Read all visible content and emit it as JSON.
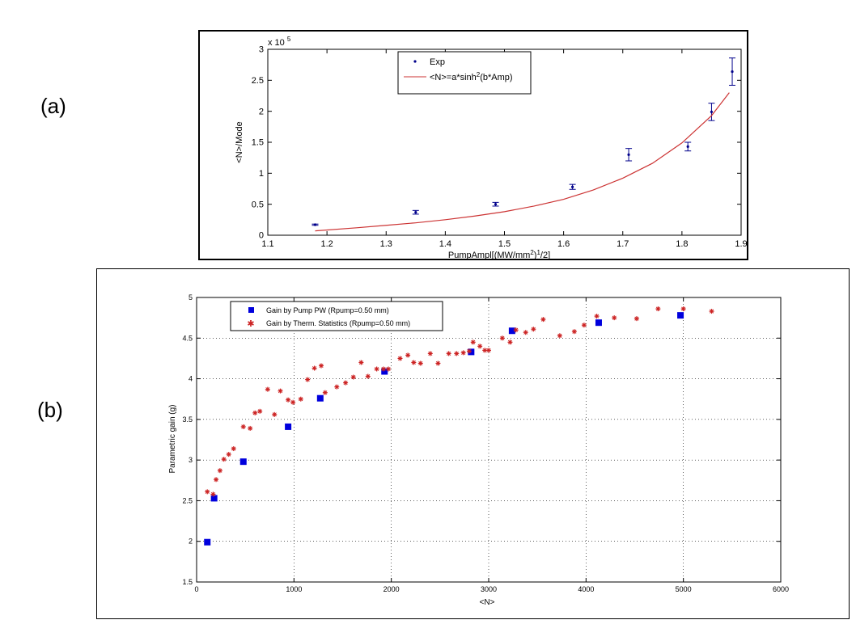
{
  "panel_labels": {
    "a": "(a)",
    "b": "(b)"
  },
  "chart_data": [
    {
      "type": "scatter",
      "panel": "(a)",
      "xlabel": "PumpAmpl[(MW/mm2)1/2]",
      "xlabel_parts": {
        "pre": "PumpAmpl[(MW/mm",
        "sup1": "2",
        "mid": ")",
        "sup2": "1",
        "post": "/2]"
      },
      "ylabel": "<N>/Mode",
      "y_multiplier": {
        "base": "x 10",
        "exp": "5"
      },
      "xlim": [
        1.1,
        1.9
      ],
      "ylim": [
        0,
        3
      ],
      "xticks": [
        1.1,
        1.2,
        1.3,
        1.4,
        1.5,
        1.6,
        1.7,
        1.8,
        1.9
      ],
      "xtick_labels": [
        "1.1",
        "1.2",
        "1.3",
        "1.4",
        "1.5",
        "1.6",
        "1.7",
        "1.8",
        "1.9"
      ],
      "yticks": [
        0,
        0.5,
        1,
        1.5,
        2,
        2.5,
        3
      ],
      "ytick_labels": [
        "0",
        "0.5",
        "1",
        "1.5",
        "2",
        "2.5",
        "3"
      ],
      "grid": false,
      "legend_position": "top-center",
      "series": [
        {
          "name": "Exp",
          "style": "points-with-errorbars",
          "color": "#00008b",
          "x": [
            1.18,
            1.35,
            1.485,
            1.615,
            1.71,
            1.81,
            1.85,
            1.885
          ],
          "y": [
            0.17,
            0.37,
            0.5,
            0.78,
            1.3,
            1.43,
            1.99,
            2.64
          ],
          "err": [
            0.01,
            0.03,
            0.03,
            0.04,
            0.1,
            0.07,
            0.14,
            0.22
          ]
        },
        {
          "name": "<N>=a*sinh2(b*Amp)",
          "name_parts": {
            "pre": "<N>=a*sinh",
            "sup": "2",
            "post": "(b*Amp)"
          },
          "style": "line",
          "color": "#cc3333",
          "x": [
            1.18,
            1.25,
            1.3,
            1.35,
            1.4,
            1.45,
            1.5,
            1.55,
            1.6,
            1.65,
            1.7,
            1.75,
            1.8,
            1.85,
            1.88
          ],
          "y": [
            0.07,
            0.12,
            0.16,
            0.2,
            0.25,
            0.31,
            0.38,
            0.47,
            0.58,
            0.73,
            0.92,
            1.16,
            1.49,
            1.93,
            2.3
          ]
        }
      ]
    },
    {
      "type": "scatter",
      "panel": "(b)",
      "xlabel": "<N>",
      "ylabel": "Parametric gain (g)",
      "xlim": [
        0,
        6000
      ],
      "ylim": [
        1.5,
        5
      ],
      "xticks": [
        0,
        1000,
        2000,
        3000,
        4000,
        5000,
        6000
      ],
      "xtick_labels": [
        "0",
        "1000",
        "2000",
        "3000",
        "4000",
        "5000",
        "6000"
      ],
      "yticks": [
        1.5,
        2,
        2.5,
        3,
        3.5,
        4,
        4.5,
        5
      ],
      "ytick_labels": [
        "1.5",
        "2",
        "2.5",
        "3",
        "3.5",
        "4",
        "4.5",
        "5"
      ],
      "grid": true,
      "legend_position": "top-left",
      "series": [
        {
          "name": "Gain by Pump PW (Rpump=0.50 mm)",
          "marker": "square",
          "color": "#0000dd",
          "x": [
            110,
            180,
            480,
            940,
            1270,
            1930,
            2820,
            3240,
            4130,
            4970
          ],
          "y": [
            1.99,
            2.53,
            2.98,
            3.41,
            3.76,
            4.09,
            4.33,
            4.59,
            4.69,
            4.78
          ]
        },
        {
          "name": "Gain by Therm. Statistics (Rpump=0.50 mm)",
          "marker": "star",
          "color": "#cc2222",
          "x": [
            110,
            170,
            200,
            240,
            280,
            330,
            380,
            480,
            550,
            600,
            650,
            730,
            800,
            860,
            940,
            990,
            1070,
            1140,
            1210,
            1280,
            1320,
            1440,
            1530,
            1610,
            1690,
            1760,
            1850,
            1920,
            1970,
            2090,
            2170,
            2230,
            2300,
            2400,
            2480,
            2590,
            2670,
            2740,
            2800,
            2840,
            2910,
            2960,
            3000,
            3140,
            3220,
            3280,
            3380,
            3460,
            3560,
            3730,
            3880,
            3980,
            4110,
            4290,
            4520,
            4740,
            5000,
            5290
          ],
          "y": [
            2.61,
            2.58,
            2.76,
            2.87,
            3.01,
            3.07,
            3.14,
            3.41,
            3.39,
            3.58,
            3.6,
            3.87,
            3.56,
            3.85,
            3.74,
            3.71,
            3.75,
            3.99,
            4.13,
            4.16,
            3.83,
            3.9,
            3.95,
            4.02,
            4.2,
            4.03,
            4.12,
            4.12,
            4.12,
            4.25,
            4.29,
            4.2,
            4.19,
            4.31,
            4.19,
            4.31,
            4.31,
            4.32,
            4.34,
            4.45,
            4.4,
            4.35,
            4.35,
            4.5,
            4.45,
            4.6,
            4.57,
            4.61,
            4.73,
            4.53,
            4.58,
            4.66,
            4.77,
            4.75,
            4.74,
            4.86,
            4.86,
            4.83
          ]
        }
      ]
    }
  ]
}
